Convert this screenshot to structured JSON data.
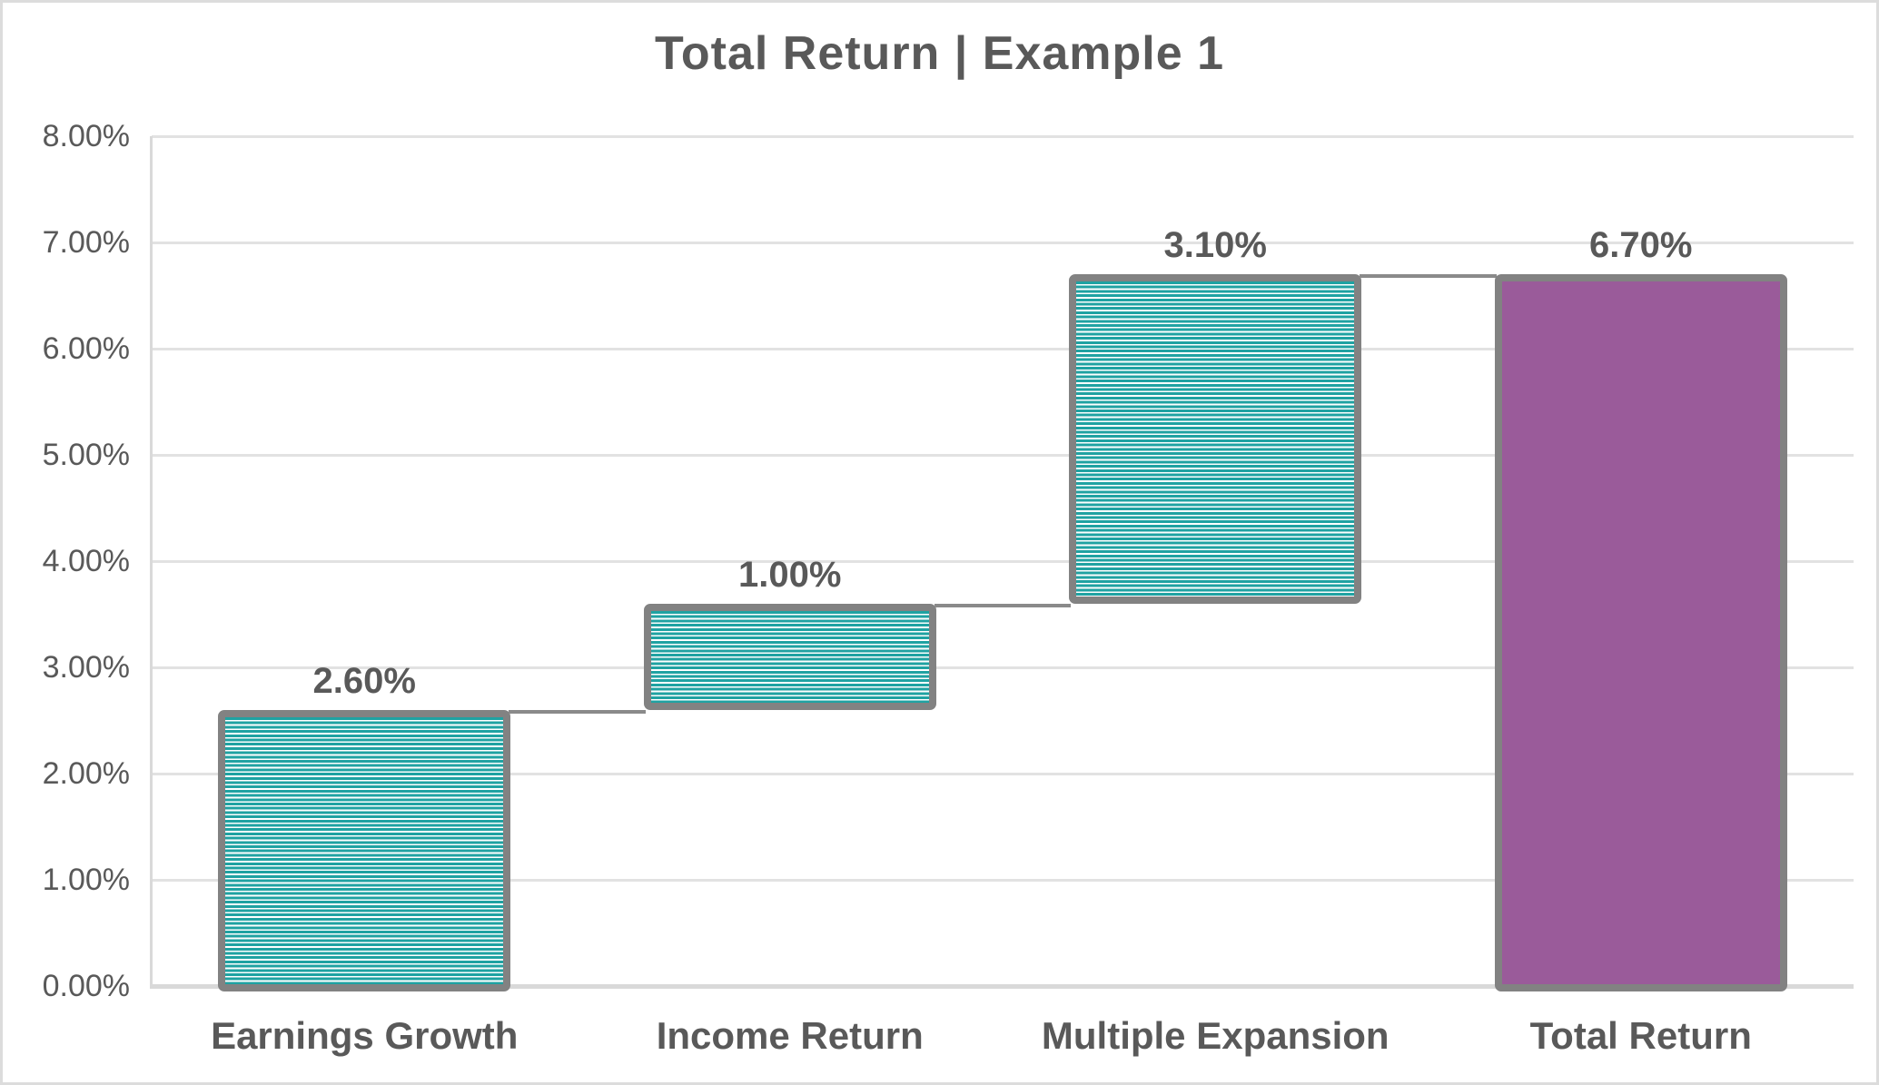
{
  "title": "Total Return | Example 1",
  "chart_data": {
    "type": "bar",
    "subtype": "waterfall",
    "title": "Total Return | Example 1",
    "categories": [
      "Earnings Growth",
      "Income Return",
      "Multiple Expansion",
      "Total Return"
    ],
    "series": [
      {
        "name": "Earnings Growth",
        "base": 0.0,
        "value": 2.6,
        "value_label": "2.60%",
        "fill": "striped-teal"
      },
      {
        "name": "Income Return",
        "base": 2.6,
        "value": 1.0,
        "value_label": "1.00%",
        "fill": "striped-teal"
      },
      {
        "name": "Multiple Expansion",
        "base": 3.6,
        "value": 3.1,
        "value_label": "3.10%",
        "fill": "striped-teal"
      },
      {
        "name": "Total Return",
        "base": 0.0,
        "value": 6.7,
        "value_label": "6.70%",
        "fill": "solid-purple"
      }
    ],
    "y_axis": {
      "min": 0,
      "max": 8,
      "step": 1,
      "tick_labels": [
        "0.00%",
        "1.00%",
        "2.00%",
        "3.00%",
        "4.00%",
        "5.00%",
        "6.00%",
        "7.00%",
        "8.00%"
      ]
    },
    "grid": true,
    "legend": false,
    "connector_levels": [
      2.6,
      3.6,
      6.7
    ]
  },
  "colors": {
    "teal_stripe": "#1FA2A2",
    "stripe_gap": "#FFFFFF",
    "total_purple": "#9A5B9A",
    "bar_border": "#828282",
    "connector": "#8A8A8A",
    "gridline": "#E2E2E2",
    "axis_line": "#D9D9D9",
    "text": "#595959",
    "frame_border": "#DCDCDC",
    "background": "#FFFFFF"
  }
}
